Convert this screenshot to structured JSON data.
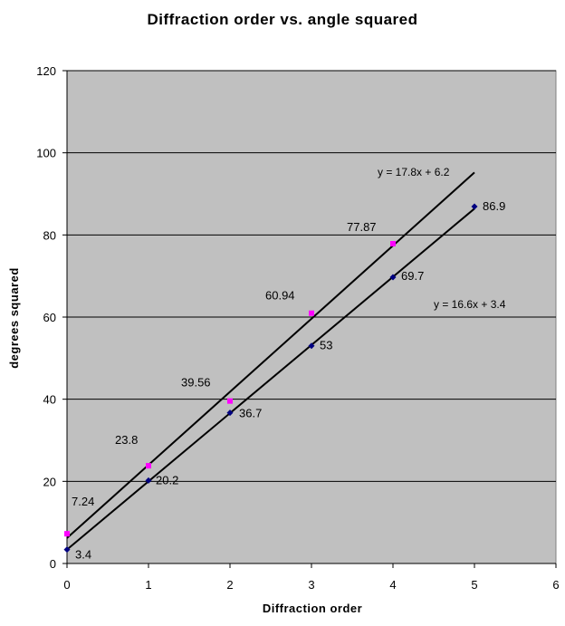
{
  "chart_data": {
    "type": "scatter",
    "title": "Diffraction order vs. angle squared",
    "xlabel": "Diffraction order",
    "ylabel": "degrees squared",
    "xlim": [
      0,
      6
    ],
    "ylim": [
      0,
      120
    ],
    "xticks": [
      "0",
      "1",
      "2",
      "3",
      "4",
      "5",
      "6"
    ],
    "yticks": [
      "0",
      "20",
      "40",
      "60",
      "80",
      "100",
      "120"
    ],
    "grid": "horizontal",
    "plot_background": "#c0c0c0",
    "series": [
      {
        "color": "#ff00ff",
        "marker": "square",
        "x": [
          0,
          1,
          2,
          3,
          4
        ],
        "y": [
          7.24,
          23.8,
          39.56,
          60.94,
          77.87
        ],
        "labels": [
          "7.24",
          "23.8",
          "39.56",
          "60.94",
          "77.87"
        ],
        "trendline": {
          "slope": 17.8,
          "intercept": 6.2,
          "x_range": [
            0,
            5
          ],
          "equation": "y = 17.8x + 6.2"
        }
      },
      {
        "color": "#000080",
        "marker": "diamond",
        "x": [
          0,
          1,
          2,
          3,
          4,
          5
        ],
        "y": [
          3.4,
          20.2,
          36.7,
          53,
          69.7,
          86.9
        ],
        "labels": [
          "3.4",
          "20.2",
          "36.7",
          "53",
          "69.7",
          "86.9"
        ],
        "trendline": {
          "slope": 16.6,
          "intercept": 3.4,
          "x_range": [
            0,
            5
          ],
          "equation": "y = 16.6x + 3.4"
        }
      }
    ]
  }
}
